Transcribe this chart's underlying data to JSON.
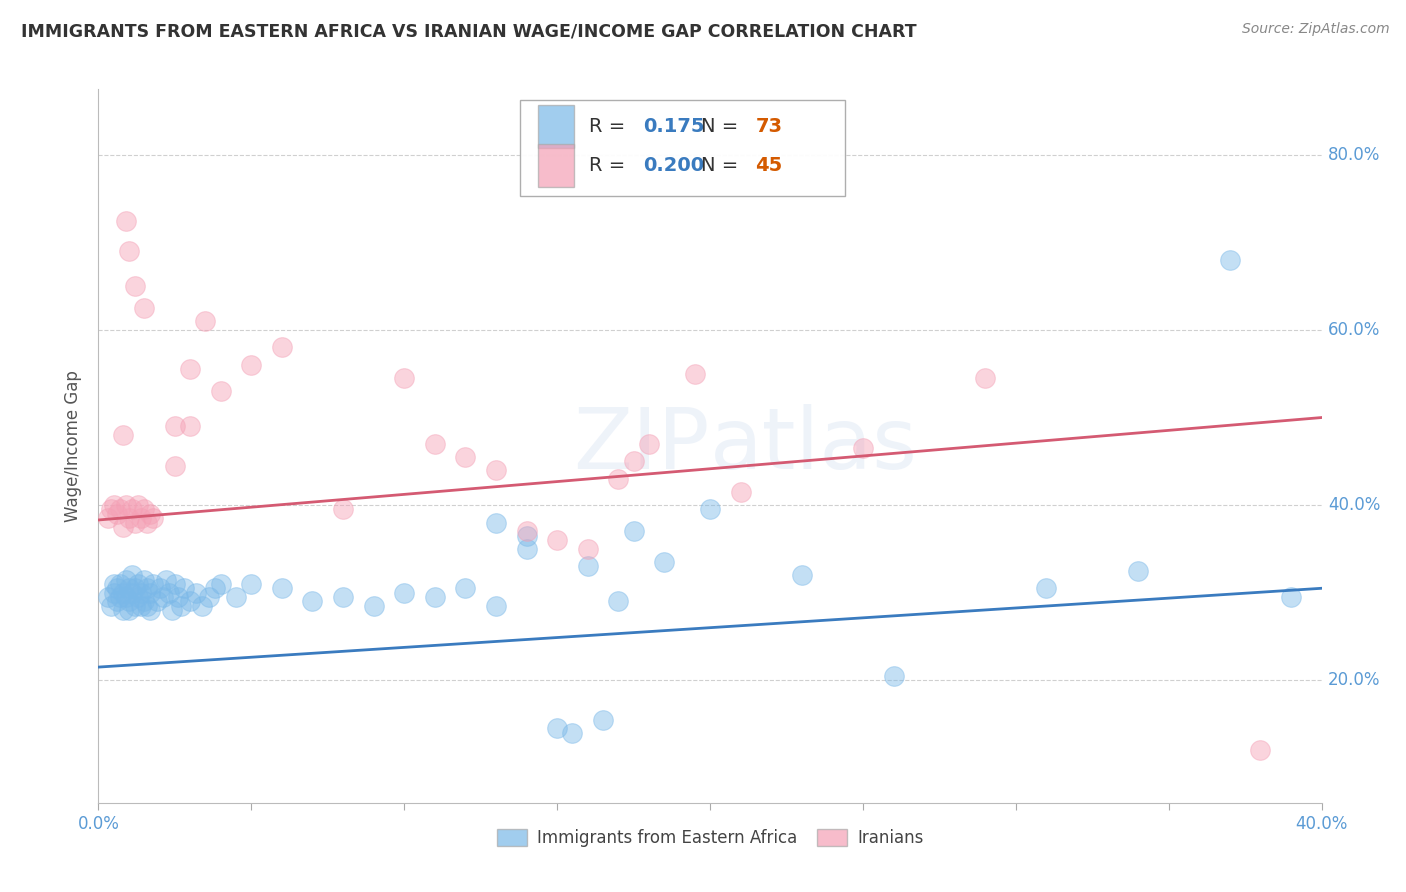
{
  "title": "IMMIGRANTS FROM EASTERN AFRICA VS IRANIAN WAGE/INCOME GAP CORRELATION CHART",
  "source": "Source: ZipAtlas.com",
  "ylabel": "Wage/Income Gap",
  "legend_label_blue": "Immigrants from Eastern Africa",
  "legend_label_pink": "Iranians",
  "R_blue": 0.175,
  "N_blue": 73,
  "R_pink": 0.2,
  "N_pink": 45,
  "xlim": [
    0.0,
    0.4
  ],
  "ylim": [
    0.06,
    0.875
  ],
  "xtick_positions": [
    0.0,
    0.05,
    0.1,
    0.15,
    0.2,
    0.25,
    0.3,
    0.35,
    0.4
  ],
  "xtick_labels": [
    "0.0%",
    "",
    "",
    "",
    "",
    "",
    "",
    "",
    "40.0%"
  ],
  "ytick_positions": [
    0.2,
    0.4,
    0.6,
    0.8
  ],
  "ytick_labels": [
    "20.0%",
    "40.0%",
    "60.0%",
    "80.0%"
  ],
  "color_blue": "#7ab8e8",
  "color_pink": "#f4a0b5",
  "line_color_blue": "#3a7bbf",
  "line_color_pink": "#d45a72",
  "background_color": "#ffffff",
  "watermark": "ZIPatlas",
  "blue_line": [
    0.215,
    0.305
  ],
  "pink_line": [
    0.383,
    0.5
  ],
  "blue_scatter_x": [
    0.003,
    0.004,
    0.005,
    0.005,
    0.006,
    0.006,
    0.007,
    0.007,
    0.008,
    0.008,
    0.009,
    0.009,
    0.01,
    0.01,
    0.01,
    0.011,
    0.011,
    0.012,
    0.012,
    0.013,
    0.013,
    0.014,
    0.014,
    0.015,
    0.015,
    0.016,
    0.016,
    0.017,
    0.017,
    0.018,
    0.019,
    0.02,
    0.021,
    0.022,
    0.023,
    0.024,
    0.025,
    0.026,
    0.027,
    0.028,
    0.03,
    0.032,
    0.034,
    0.036,
    0.038,
    0.04,
    0.045,
    0.05,
    0.06,
    0.07,
    0.08,
    0.09,
    0.1,
    0.11,
    0.12,
    0.13,
    0.14,
    0.15,
    0.16,
    0.17,
    0.13,
    0.14,
    0.155,
    0.165,
    0.175,
    0.185,
    0.2,
    0.23,
    0.26,
    0.31,
    0.34,
    0.37,
    0.39
  ],
  "blue_scatter_y": [
    0.295,
    0.285,
    0.3,
    0.31,
    0.29,
    0.305,
    0.31,
    0.295,
    0.3,
    0.28,
    0.295,
    0.315,
    0.29,
    0.305,
    0.28,
    0.3,
    0.32,
    0.285,
    0.305,
    0.295,
    0.31,
    0.285,
    0.3,
    0.29,
    0.315,
    0.285,
    0.305,
    0.28,
    0.3,
    0.31,
    0.29,
    0.305,
    0.295,
    0.315,
    0.3,
    0.28,
    0.31,
    0.295,
    0.285,
    0.305,
    0.29,
    0.3,
    0.285,
    0.295,
    0.305,
    0.31,
    0.295,
    0.31,
    0.305,
    0.29,
    0.295,
    0.285,
    0.3,
    0.295,
    0.305,
    0.285,
    0.35,
    0.145,
    0.33,
    0.29,
    0.38,
    0.365,
    0.14,
    0.155,
    0.37,
    0.335,
    0.395,
    0.32,
    0.205,
    0.305,
    0.325,
    0.68,
    0.295
  ],
  "pink_scatter_x": [
    0.003,
    0.004,
    0.005,
    0.006,
    0.007,
    0.008,
    0.009,
    0.01,
    0.011,
    0.012,
    0.013,
    0.014,
    0.015,
    0.016,
    0.017,
    0.018,
    0.009,
    0.01,
    0.012,
    0.015,
    0.025,
    0.03,
    0.04,
    0.05,
    0.06,
    0.08,
    0.1,
    0.11,
    0.12,
    0.13,
    0.14,
    0.15,
    0.16,
    0.17,
    0.175,
    0.18,
    0.025,
    0.03,
    0.035,
    0.195,
    0.21,
    0.25,
    0.29,
    0.38,
    0.008
  ],
  "pink_scatter_y": [
    0.385,
    0.395,
    0.4,
    0.39,
    0.395,
    0.375,
    0.4,
    0.385,
    0.395,
    0.38,
    0.4,
    0.385,
    0.395,
    0.38,
    0.39,
    0.385,
    0.725,
    0.69,
    0.65,
    0.625,
    0.445,
    0.49,
    0.53,
    0.56,
    0.58,
    0.395,
    0.545,
    0.47,
    0.455,
    0.44,
    0.37,
    0.36,
    0.35,
    0.43,
    0.45,
    0.47,
    0.49,
    0.555,
    0.61,
    0.55,
    0.415,
    0.465,
    0.545,
    0.12,
    0.48
  ]
}
